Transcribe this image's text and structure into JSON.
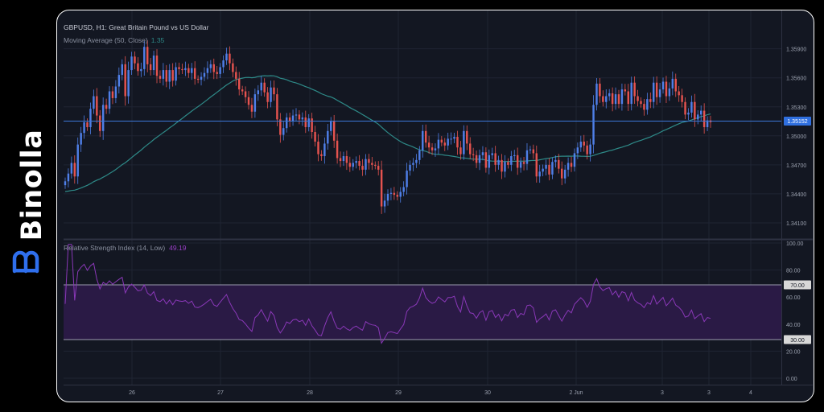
{
  "brand": {
    "name": "Binolla",
    "logo_icon": "binolla-b-icon",
    "color": "#ffffff",
    "logo_color": "#2f6fed"
  },
  "price_panel": {
    "title": "GBPUSD, H1: Great Britain Pound vs US Dollar",
    "indicator": "Moving Average (50, Close)",
    "indicator_value": "1.35",
    "current_price_label": "1.35152",
    "current_price": 1.35152
  },
  "rsi_panel": {
    "title": "Relative Strength Index (14, Low)",
    "value": "49.19",
    "upper_level": "70.00",
    "lower_level": "30.00"
  },
  "colors": {
    "background": "#131722",
    "up": "#4f7fe8",
    "down": "#e5534f",
    "ma": "#2e8a88",
    "rsi": "#8a38b8",
    "band": "#2a1a45",
    "price_line": "#3c78d8"
  },
  "chart_data": [
    {
      "type": "candlestick",
      "title": "GBPUSD, H1: Great Britain Pound vs US Dollar",
      "x_ticks": [
        "26",
        "27",
        "28",
        "29",
        "30",
        "2 Jun",
        "3",
        "3",
        "4"
      ],
      "y_ticks": [
        "1.35900",
        "1.35600",
        "1.35300",
        "1.35000",
        "1.34700",
        "1.34400",
        "1.34100"
      ],
      "ylim": [
        1.3395,
        1.3613
      ],
      "ma_period": 50,
      "close": [
        1.3453,
        1.3461,
        1.3472,
        1.3458,
        1.3491,
        1.3503,
        1.3514,
        1.3509,
        1.3528,
        1.3541,
        1.3521,
        1.3505,
        1.3532,
        1.3528,
        1.3546,
        1.3539,
        1.3551,
        1.3563,
        1.3574,
        1.3541,
        1.3568,
        1.3582,
        1.3575,
        1.3567,
        1.3569,
        1.3592,
        1.3574,
        1.3568,
        1.3583,
        1.3562,
        1.3559,
        1.3568,
        1.3556,
        1.3568,
        1.3557,
        1.3571,
        1.3569,
        1.3568,
        1.357,
        1.3565,
        1.357,
        1.3559,
        1.3558,
        1.3561,
        1.3565,
        1.357,
        1.3574,
        1.3566,
        1.3564,
        1.3571,
        1.3578,
        1.3585,
        1.3575,
        1.3566,
        1.3559,
        1.3548,
        1.3546,
        1.354,
        1.3532,
        1.3525,
        1.3543,
        1.3547,
        1.3555,
        1.3545,
        1.3535,
        1.355,
        1.3543,
        1.3517,
        1.3501,
        1.3508,
        1.3519,
        1.3515,
        1.3521,
        1.3522,
        1.3517,
        1.3519,
        1.3509,
        1.3518,
        1.3504,
        1.3494,
        1.3481,
        1.3479,
        1.3492,
        1.3505,
        1.3515,
        1.3495,
        1.3477,
        1.3474,
        1.3479,
        1.3472,
        1.3468,
        1.3472,
        1.3474,
        1.3469,
        1.3465,
        1.3476,
        1.3472,
        1.347,
        1.3469,
        1.3465,
        1.3427,
        1.3433,
        1.344,
        1.3441,
        1.3439,
        1.3437,
        1.3442,
        1.3447,
        1.3464,
        1.347,
        1.3472,
        1.3475,
        1.3485,
        1.3505,
        1.3493,
        1.3488,
        1.3485,
        1.3487,
        1.3496,
        1.3493,
        1.349,
        1.3497,
        1.3497,
        1.3499,
        1.3488,
        1.3481,
        1.3505,
        1.3492,
        1.3481,
        1.348,
        1.3472,
        1.348,
        1.3483,
        1.3467,
        1.348,
        1.3482,
        1.347,
        1.3475,
        1.3463,
        1.3473,
        1.347,
        1.3479,
        1.348,
        1.3467,
        1.3473,
        1.3471,
        1.3485,
        1.3486,
        1.3482,
        1.3458,
        1.3463,
        1.3466,
        1.347,
        1.346,
        1.3473,
        1.3475,
        1.3466,
        1.3456,
        1.3465,
        1.3472,
        1.3468,
        1.3482,
        1.3488,
        1.3494,
        1.349,
        1.3481,
        1.3491,
        1.3532,
        1.3554,
        1.3541,
        1.3535,
        1.3541,
        1.3544,
        1.3533,
        1.3543,
        1.3533,
        1.3548,
        1.3546,
        1.3533,
        1.3555,
        1.3541,
        1.3536,
        1.3533,
        1.3527,
        1.3538,
        1.3535,
        1.3555,
        1.354,
        1.3548,
        1.3556,
        1.3541,
        1.3549,
        1.3559,
        1.3546,
        1.3542,
        1.3535,
        1.3522,
        1.3524,
        1.3535,
        1.3517,
        1.3522,
        1.3526,
        1.3509,
        1.3516,
        1.3514
      ]
    },
    {
      "type": "line",
      "title": "Relative Strength Index (14, Low)",
      "y_ticks": [
        "100.00",
        "80.00",
        "60.00",
        "40.00",
        "20.00",
        "0.00"
      ],
      "ylim": [
        0,
        100
      ],
      "levels": [
        30,
        70
      ]
    }
  ]
}
